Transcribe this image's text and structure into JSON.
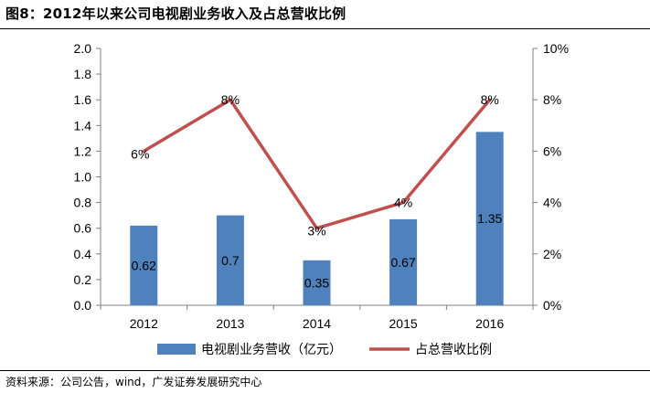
{
  "header": {
    "title": "图8：2012年以来公司电视剧业务收入及占总营收比例"
  },
  "footer": {
    "source": "资料来源：公司公告，wind，广发证券发展研究中心"
  },
  "colors": {
    "bar": "#4F81BD",
    "line": "#C0504D",
    "axis": "#808080"
  },
  "chart_data": {
    "type": "bar",
    "title": "",
    "categories": [
      "2012",
      "2013",
      "2014",
      "2015",
      "2016"
    ],
    "series": [
      {
        "name": "电视剧业务营收（亿元）",
        "type": "bar",
        "axis": "left",
        "values": [
          0.62,
          0.7,
          0.35,
          0.67,
          1.35
        ],
        "labels": [
          "0.62",
          "0.7",
          "0.35",
          "0.67",
          "1.35"
        ]
      },
      {
        "name": "占总营收比例",
        "type": "line",
        "axis": "right",
        "values": [
          6,
          8,
          3,
          4,
          8
        ],
        "labels": [
          "6%",
          "8%",
          "3%",
          "4%",
          "8%"
        ]
      }
    ],
    "y_left": {
      "min": 0,
      "max": 2.0,
      "ticks": [
        "0.0",
        "0.2",
        "0.4",
        "0.6",
        "0.8",
        "1.0",
        "1.2",
        "1.4",
        "1.6",
        "1.8",
        "2.0"
      ]
    },
    "y_right": {
      "min": 0,
      "max": 10,
      "ticks": [
        "0%",
        "2%",
        "4%",
        "6%",
        "8%",
        "10%"
      ]
    },
    "grid": false,
    "legend_position": "bottom"
  }
}
